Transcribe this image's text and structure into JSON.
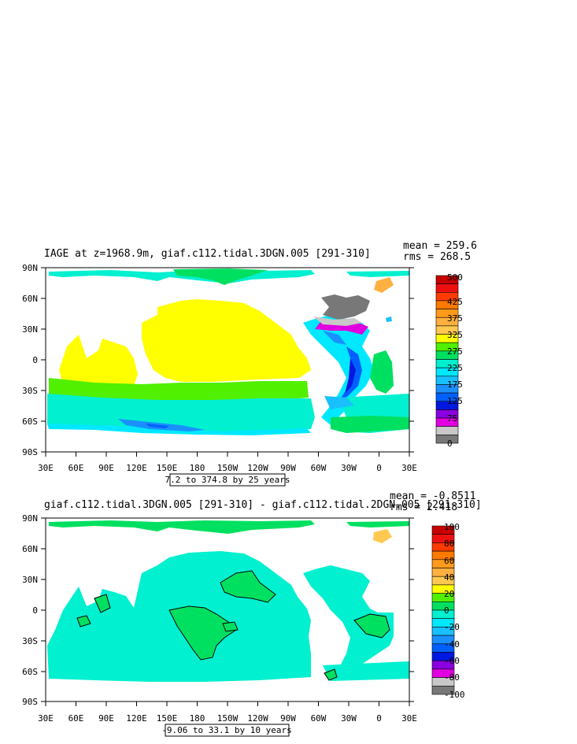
{
  "panels": [
    {
      "title": "IAGE at z=1968.9m, giaf.c112.tidal.3DGN.005 [291-310]",
      "mean_label": "mean = 259.6",
      "rms_label": "rms = 268.5",
      "contour_info": "7.2 to 374.8 by 25 years",
      "lat_ticks": [
        "90N",
        "60N",
        "30N",
        "0",
        "30S",
        "60S",
        "90S"
      ],
      "lon_ticks": [
        "30E",
        "60E",
        "90E",
        "120E",
        "150E",
        "180",
        "150W",
        "120W",
        "90W",
        "60W",
        "30W",
        "0",
        "30E"
      ],
      "colorbar_labels": [
        "500",
        "425",
        "375",
        "325",
        "275",
        "225",
        "175",
        "125",
        "75",
        "0"
      ],
      "colorbar_colors": [
        "#c80000",
        "#ee1010",
        "#ff3b00",
        "#ff7a00",
        "#ff9a1a",
        "#ffb040",
        "#ffc850",
        "#ffff00",
        "#50f000",
        "#00e060",
        "#00f0d0",
        "#00e8ff",
        "#18c0ff",
        "#1a90ff",
        "#0060ff",
        "#0018e0",
        "#8a00e0",
        "#e000e0",
        "#c8c8c8",
        "#787878"
      ]
    },
    {
      "title": "giaf.c112.tidal.3DGN.005 [291-310] - giaf.c112.tidal.2DGN.005 [291-310]",
      "mean_label": "mean = -0.8511",
      "rms_label": "rms = 2.418",
      "contour_info": "-9.06 to 33.1 by 10 years",
      "lat_ticks": [
        "90N",
        "60N",
        "30N",
        "0",
        "30S",
        "60S",
        "90S"
      ],
      "lon_ticks": [
        "30E",
        "60E",
        "90E",
        "120E",
        "150E",
        "180",
        "150W",
        "120W",
        "90W",
        "60W",
        "30W",
        "0",
        "30E"
      ],
      "colorbar_labels": [
        "100",
        "80",
        "60",
        "40",
        "20",
        "0",
        "-20",
        "-40",
        "-60",
        "-80",
        "-100"
      ],
      "colorbar_colors": [
        "#c80000",
        "#ee1010",
        "#ff3b00",
        "#ff7a00",
        "#ff9a1a",
        "#ffb040",
        "#ffc850",
        "#ffff00",
        "#50f000",
        "#00e060",
        "#00f0d0",
        "#00e8ff",
        "#18c0ff",
        "#1a90ff",
        "#0060ff",
        "#0018e0",
        "#8a00e0",
        "#e000e0",
        "#c8c8c8",
        "#787878"
      ]
    }
  ]
}
